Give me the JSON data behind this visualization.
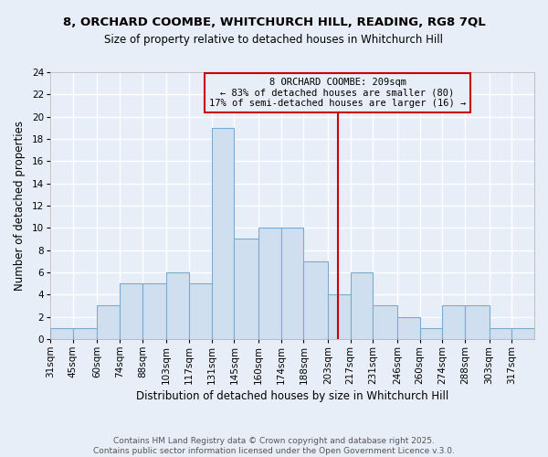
{
  "title1": "8, ORCHARD COOMBE, WHITCHURCH HILL, READING, RG8 7QL",
  "title2": "Size of property relative to detached houses in Whitchurch Hill",
  "xlabel": "Distribution of detached houses by size in Whitchurch Hill",
  "ylabel": "Number of detached properties",
  "bin_edges": [
    31,
    45,
    60,
    74,
    88,
    103,
    117,
    131,
    145,
    160,
    174,
    188,
    203,
    217,
    231,
    246,
    260,
    274,
    288,
    303,
    317,
    331
  ],
  "bar_heights": [
    1,
    1,
    3,
    5,
    5,
    6,
    5,
    19,
    9,
    10,
    10,
    7,
    4,
    6,
    3,
    2,
    1,
    3,
    3,
    1,
    1
  ],
  "bar_color": "#d0dff0",
  "bar_edgecolor": "#7aaad0",
  "background_color": "#e8eef8",
  "grid_color": "#ffffff",
  "vline_x": 209,
  "vline_color": "#cc0000",
  "annotation_line1": "8 ORCHARD COOMBE: 209sqm",
  "annotation_line2": "← 83% of detached houses are smaller (80)",
  "annotation_line3": "17% of semi-detached houses are larger (16) →",
  "annotation_box_edgecolor": "#cc0000",
  "ylim": [
    0,
    24
  ],
  "yticks": [
    0,
    2,
    4,
    6,
    8,
    10,
    12,
    14,
    16,
    18,
    20,
    22,
    24
  ],
  "tick_labels": [
    "31sqm",
    "45sqm",
    "60sqm",
    "74sqm",
    "88sqm",
    "103sqm",
    "117sqm",
    "131sqm",
    "145sqm",
    "160sqm",
    "174sqm",
    "188sqm",
    "203sqm",
    "217sqm",
    "231sqm",
    "246sqm",
    "260sqm",
    "274sqm",
    "288sqm",
    "303sqm",
    "317sqm"
  ],
  "footer_text": "Contains HM Land Registry data © Crown copyright and database right 2025.\nContains public sector information licensed under the Open Government Licence v.3.0.",
  "title_fontsize": 9.5,
  "subtitle_fontsize": 8.5,
  "axis_label_fontsize": 8.5,
  "tick_fontsize": 7.5,
  "annotation_fontsize": 7.5,
  "footer_fontsize": 6.5
}
